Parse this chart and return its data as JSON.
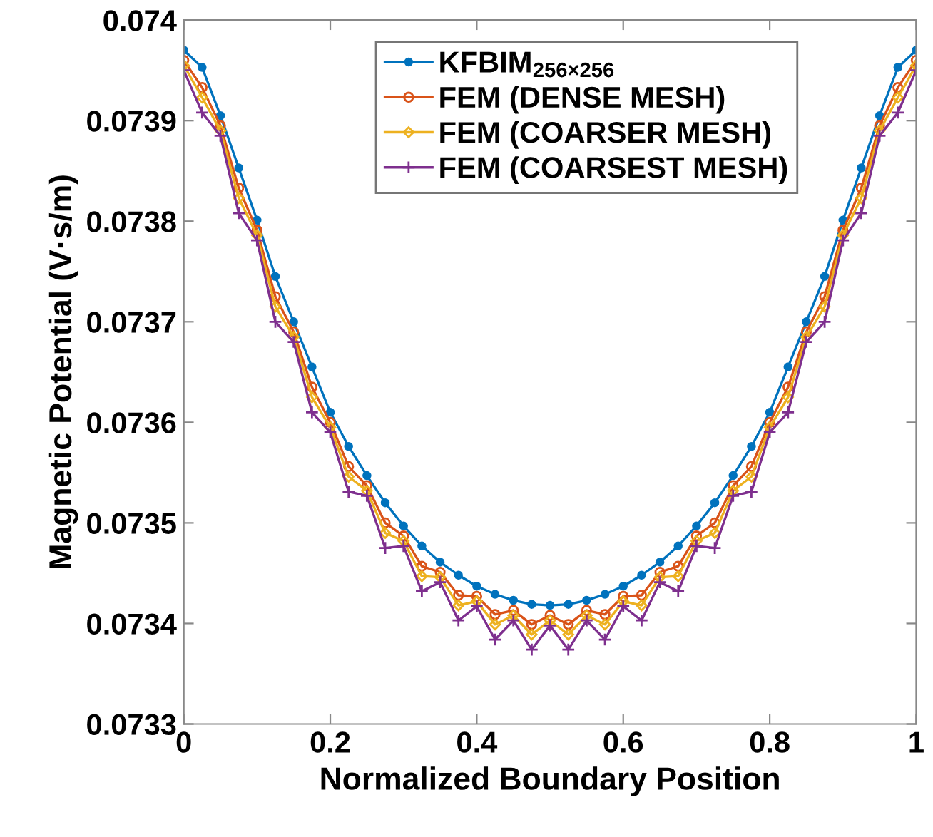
{
  "chart_data": {
    "type": "line",
    "xlabel": "Normalized Boundary Position",
    "ylabel": "Magnetic Potential (V·s/m)",
    "xlim": [
      0,
      1
    ],
    "xticks": [
      0,
      0.2,
      0.4,
      0.6,
      0.8,
      1
    ],
    "ylim": [
      0.0733,
      0.074
    ],
    "yticks": [
      0.0733,
      0.0734,
      0.0735,
      0.0736,
      0.0737,
      0.0738,
      0.0739,
      0.074
    ],
    "grid": false,
    "legend": "top",
    "x": [
      0,
      0.025,
      0.05,
      0.075,
      0.1,
      0.125,
      0.15,
      0.175,
      0.2,
      0.225,
      0.25,
      0.275,
      0.3,
      0.325,
      0.35,
      0.375,
      0.4,
      0.425,
      0.45,
      0.475,
      0.5,
      0.525,
      0.55,
      0.575,
      0.6,
      0.625,
      0.65,
      0.675,
      0.7,
      0.725,
      0.75,
      0.775,
      0.8,
      0.825,
      0.85,
      0.875,
      0.9,
      0.925,
      0.95,
      0.975,
      1
    ],
    "series": [
      {
        "name": "KFBIM$_{256×256}$",
        "color": "#0072bd",
        "marker": "dot",
        "values": [
          0.07397,
          0.073953,
          0.073905,
          0.073853,
          0.073801,
          0.073745,
          0.0737,
          0.073655,
          0.07361,
          0.073576,
          0.073547,
          0.07352,
          0.073497,
          0.073477,
          0.073461,
          0.073448,
          0.073437,
          0.073429,
          0.073423,
          0.073419,
          0.073418,
          0.073419,
          0.073423,
          0.073429,
          0.073437,
          0.073448,
          0.073461,
          0.073477,
          0.073497,
          0.07352,
          0.073547,
          0.073576,
          0.07361,
          0.073655,
          0.0737,
          0.073745,
          0.073801,
          0.073853,
          0.073905,
          0.073953,
          0.07397
        ]
      },
      {
        "name": "FEM (DENSE MESH)",
        "color": "#d95319",
        "marker": "circle",
        "values": [
          0.07396,
          0.073933,
          0.073895,
          0.073833,
          0.073791,
          0.073725,
          0.07369,
          0.073635,
          0.0736,
          0.073556,
          0.073537,
          0.0735,
          0.073487,
          0.073457,
          0.073451,
          0.073428,
          0.073427,
          0.073409,
          0.073413,
          0.073399,
          0.073408,
          0.073399,
          0.073413,
          0.073409,
          0.073427,
          0.073428,
          0.073451,
          0.073457,
          0.073487,
          0.0735,
          0.073537,
          0.073556,
          0.0736,
          0.073635,
          0.07369,
          0.073725,
          0.073791,
          0.073833,
          0.073895,
          0.073933,
          0.07396
        ]
      },
      {
        "name": "FEM (COARSER MESH)",
        "color": "#edb120",
        "marker": "diamond",
        "values": [
          0.073955,
          0.073923,
          0.07389,
          0.073823,
          0.073786,
          0.073715,
          0.073685,
          0.073625,
          0.073595,
          0.073546,
          0.073532,
          0.07349,
          0.073482,
          0.073447,
          0.073446,
          0.073418,
          0.073422,
          0.073399,
          0.073408,
          0.073389,
          0.073403,
          0.073389,
          0.073408,
          0.073399,
          0.073422,
          0.073418,
          0.073446,
          0.073447,
          0.073482,
          0.07349,
          0.073532,
          0.073546,
          0.073595,
          0.073625,
          0.073685,
          0.073715,
          0.073786,
          0.073823,
          0.07389,
          0.073923,
          0.073955
        ]
      },
      {
        "name": "FEM (COARSEST MESH)",
        "color": "#7e2f8e",
        "marker": "plus",
        "values": [
          0.07395,
          0.073908,
          0.073885,
          0.073808,
          0.073781,
          0.0737,
          0.07368,
          0.07361,
          0.07359,
          0.073531,
          0.073527,
          0.073475,
          0.073477,
          0.073432,
          0.073441,
          0.073403,
          0.073417,
          0.073384,
          0.073403,
          0.073374,
          0.073398,
          0.073374,
          0.073403,
          0.073384,
          0.073417,
          0.073403,
          0.073441,
          0.073432,
          0.073477,
          0.073475,
          0.073527,
          0.073531,
          0.07359,
          0.07361,
          0.07368,
          0.0737,
          0.073781,
          0.073808,
          0.073885,
          0.073908,
          0.07395
        ]
      }
    ]
  }
}
